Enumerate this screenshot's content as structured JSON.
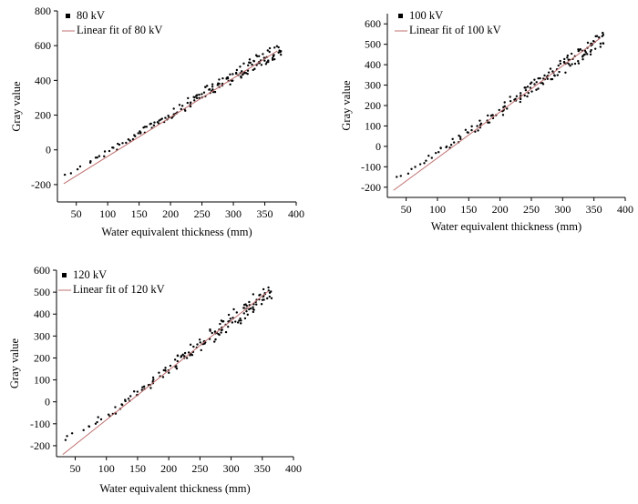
{
  "chart_data": [
    {
      "type": "scatter",
      "xlabel": "Water equivalent thickness (mm)",
      "ylabel": "Gray value",
      "xlim": [
        20,
        400
      ],
      "ylim": [
        -300,
        800
      ],
      "xticks": [
        50,
        100,
        150,
        200,
        250,
        300,
        350,
        400
      ],
      "yticks": [
        -200,
        0,
        200,
        400,
        600,
        800
      ],
      "grid": false,
      "legend_position": "top-left",
      "series": [
        {
          "name": "80 kV",
          "kind": "points",
          "color": "#000000",
          "x": [
            30,
            40,
            50,
            60,
            70,
            80,
            90,
            100,
            110,
            120,
            130,
            140,
            150,
            160,
            170,
            180,
            190,
            200,
            210,
            220,
            230,
            240,
            250,
            260,
            270,
            280,
            290,
            300,
            310,
            320,
            330,
            340,
            350,
            360,
            370
          ],
          "y": [
            -145,
            -130,
            -110,
            -90,
            -68,
            -50,
            -30,
            -10,
            10,
            30,
            52,
            72,
            92,
            115,
            140,
            160,
            180,
            200,
            225,
            250,
            272,
            295,
            320,
            340,
            362,
            382,
            405,
            428,
            450,
            470,
            490,
            510,
            528,
            545,
            560
          ]
        },
        {
          "name": "Linear fit of 80 kV",
          "kind": "line",
          "color": "#c07070",
          "x": [
            30,
            370
          ],
          "y": [
            -195,
            570
          ]
        }
      ]
    },
    {
      "type": "scatter",
      "xlabel": "Water equivalent thickness (mm)",
      "ylabel": "Gray value",
      "xlim": [
        20,
        400
      ],
      "ylim": [
        -250,
        650
      ],
      "xticks": [
        50,
        100,
        150,
        200,
        250,
        300,
        350,
        400
      ],
      "yticks": [
        -200,
        -100,
        0,
        100,
        200,
        300,
        400,
        500,
        600
      ],
      "grid": false,
      "legend_position": "top-left",
      "series": [
        {
          "name": "100 kV",
          "kind": "points",
          "color": "#000000",
          "x": [
            30,
            40,
            50,
            60,
            70,
            80,
            90,
            100,
            110,
            120,
            130,
            140,
            150,
            160,
            170,
            180,
            190,
            200,
            210,
            220,
            230,
            240,
            250,
            260,
            270,
            280,
            290,
            300,
            310,
            320,
            330,
            340,
            350,
            360
          ],
          "y": [
            -150,
            -140,
            -130,
            -115,
            -95,
            -75,
            -55,
            -38,
            -15,
            5,
            25,
            45,
            65,
            88,
            110,
            132,
            152,
            175,
            195,
            218,
            240,
            262,
            285,
            305,
            328,
            350,
            372,
            395,
            418,
            440,
            460,
            482,
            505,
            525
          ]
        },
        {
          "name": "Linear fit of 100 kV",
          "kind": "line",
          "color": "#c07070",
          "x": [
            30,
            360
          ],
          "y": [
            -215,
            530
          ]
        }
      ]
    },
    {
      "type": "scatter",
      "xlabel": "Water equivalent thickness (mm)",
      "ylabel": "Gray value",
      "xlim": [
        20,
        400
      ],
      "ylim": [
        -250,
        600
      ],
      "xticks": [
        50,
        100,
        150,
        200,
        250,
        300,
        350,
        400
      ],
      "yticks": [
        -200,
        -100,
        0,
        100,
        200,
        300,
        400,
        500,
        600
      ],
      "grid": false,
      "legend_position": "top-left",
      "series": [
        {
          "name": "120 kV",
          "kind": "points",
          "color": "#000000",
          "x": [
            30,
            40,
            50,
            60,
            70,
            80,
            90,
            100,
            110,
            120,
            130,
            140,
            150,
            160,
            170,
            180,
            190,
            200,
            210,
            220,
            230,
            240,
            250,
            260,
            270,
            280,
            290,
            300,
            310,
            320,
            330,
            340,
            350,
            360
          ],
          "y": [
            -175,
            -160,
            -148,
            -132,
            -115,
            -98,
            -80,
            -60,
            -45,
            -25,
            -5,
            15,
            38,
            58,
            80,
            102,
            125,
            148,
            170,
            190,
            212,
            235,
            258,
            280,
            302,
            325,
            345,
            368,
            390,
            412,
            432,
            455,
            478,
            500
          ]
        },
        {
          "name": "Linear fit of 120 kV",
          "kind": "line",
          "color": "#c07070",
          "x": [
            30,
            360
          ],
          "y": [
            -240,
            505
          ]
        }
      ]
    }
  ]
}
